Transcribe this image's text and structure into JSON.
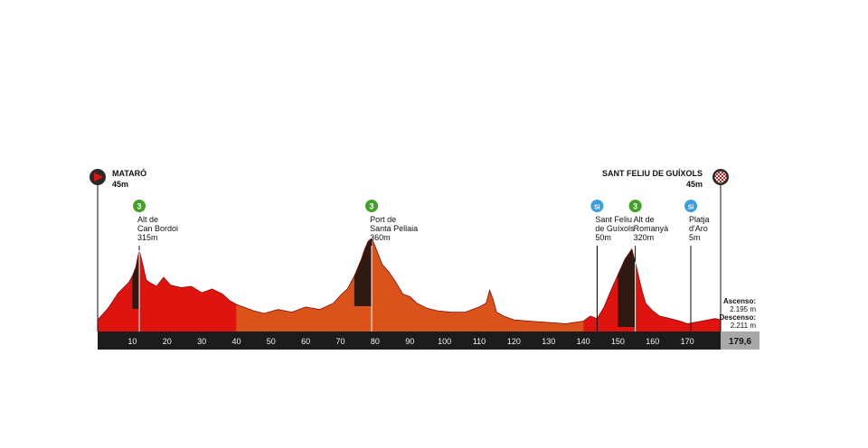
{
  "chart_data": {
    "type": "area",
    "title": "",
    "xlabel": "",
    "ylabel": "",
    "xlim": [
      0,
      179.6
    ],
    "total_distance": "179,6",
    "x_ticks": [
      10,
      20,
      30,
      40,
      50,
      60,
      70,
      80,
      90,
      100,
      110,
      120,
      130,
      140,
      150,
      160,
      170
    ],
    "profile": {
      "x": [
        0,
        3,
        6,
        9,
        10,
        11,
        12,
        13,
        14,
        15,
        17,
        19,
        21,
        24,
        27,
        30,
        33,
        36,
        38,
        40,
        42,
        45,
        48,
        52,
        56,
        60,
        64,
        68,
        70,
        72,
        74,
        76,
        77,
        78,
        79,
        80,
        81,
        82,
        84,
        86,
        88,
        90,
        92,
        95,
        98,
        102,
        106,
        110,
        112,
        113,
        114,
        115,
        117,
        120,
        125,
        130,
        135,
        140,
        142,
        144,
        146,
        148,
        150,
        152,
        153,
        154,
        155,
        156,
        157,
        158,
        160,
        162,
        165,
        168,
        170,
        172,
        174,
        176,
        178,
        179.6
      ],
      "elev": [
        45,
        90,
        150,
        190,
        215,
        250,
        315,
        260,
        200,
        190,
        175,
        210,
        180,
        170,
        175,
        150,
        165,
        145,
        120,
        105,
        95,
        80,
        70,
        85,
        75,
        95,
        85,
        110,
        140,
        165,
        215,
        280,
        320,
        350,
        360,
        330,
        295,
        260,
        230,
        190,
        145,
        135,
        110,
        90,
        80,
        75,
        75,
        95,
        110,
        160,
        125,
        75,
        60,
        45,
        40,
        35,
        30,
        40,
        60,
        50,
        95,
        160,
        220,
        280,
        300,
        320,
        270,
        210,
        155,
        110,
        80,
        60,
        50,
        40,
        30,
        35,
        40,
        45,
        50,
        45
      ],
      "ymax": 420
    },
    "start": {
      "name": "MATARÓ",
      "elevation": "45m"
    },
    "finish": {
      "name": "SANT FELIU DE GUÍXOLS",
      "elevation": "45m"
    },
    "markers": [
      {
        "type": "climb",
        "badge": "3",
        "km": 12,
        "lines": [
          "Alt de",
          "Can Bordoi",
          "315m"
        ]
      },
      {
        "type": "climb",
        "badge": "3",
        "km": 79,
        "lines": [
          "Port de",
          "Santa Pellaia",
          "360m"
        ]
      },
      {
        "type": "sprint",
        "badge": "Si",
        "km": 144,
        "lines": [
          "Sant Feliu",
          "de Guíxols",
          "50m"
        ]
      },
      {
        "type": "climb",
        "badge": "3",
        "km": 155,
        "lines": [
          "Alt de",
          "Romanyà",
          "320m"
        ]
      },
      {
        "type": "sprint",
        "badge": "Si",
        "km": 171,
        "lines": [
          "Platja",
          "d'Aro",
          "5m"
        ]
      }
    ],
    "ascent": {
      "label": "Ascenso:",
      "value": "2.195 m"
    },
    "descent": {
      "label": "Descenso:",
      "value": "2.211 m"
    },
    "colors": {
      "red": "#e0140f",
      "dark_red": "#b00a06",
      "orange": "#d9531a",
      "dark": "#2e1a12",
      "axis_bar": "#1c1c1c",
      "total_box": "#a8a8a8",
      "climb_badge": "#43a12a",
      "sprint_badge": "#3a9fe0",
      "start_icon": "#e0140f"
    }
  }
}
